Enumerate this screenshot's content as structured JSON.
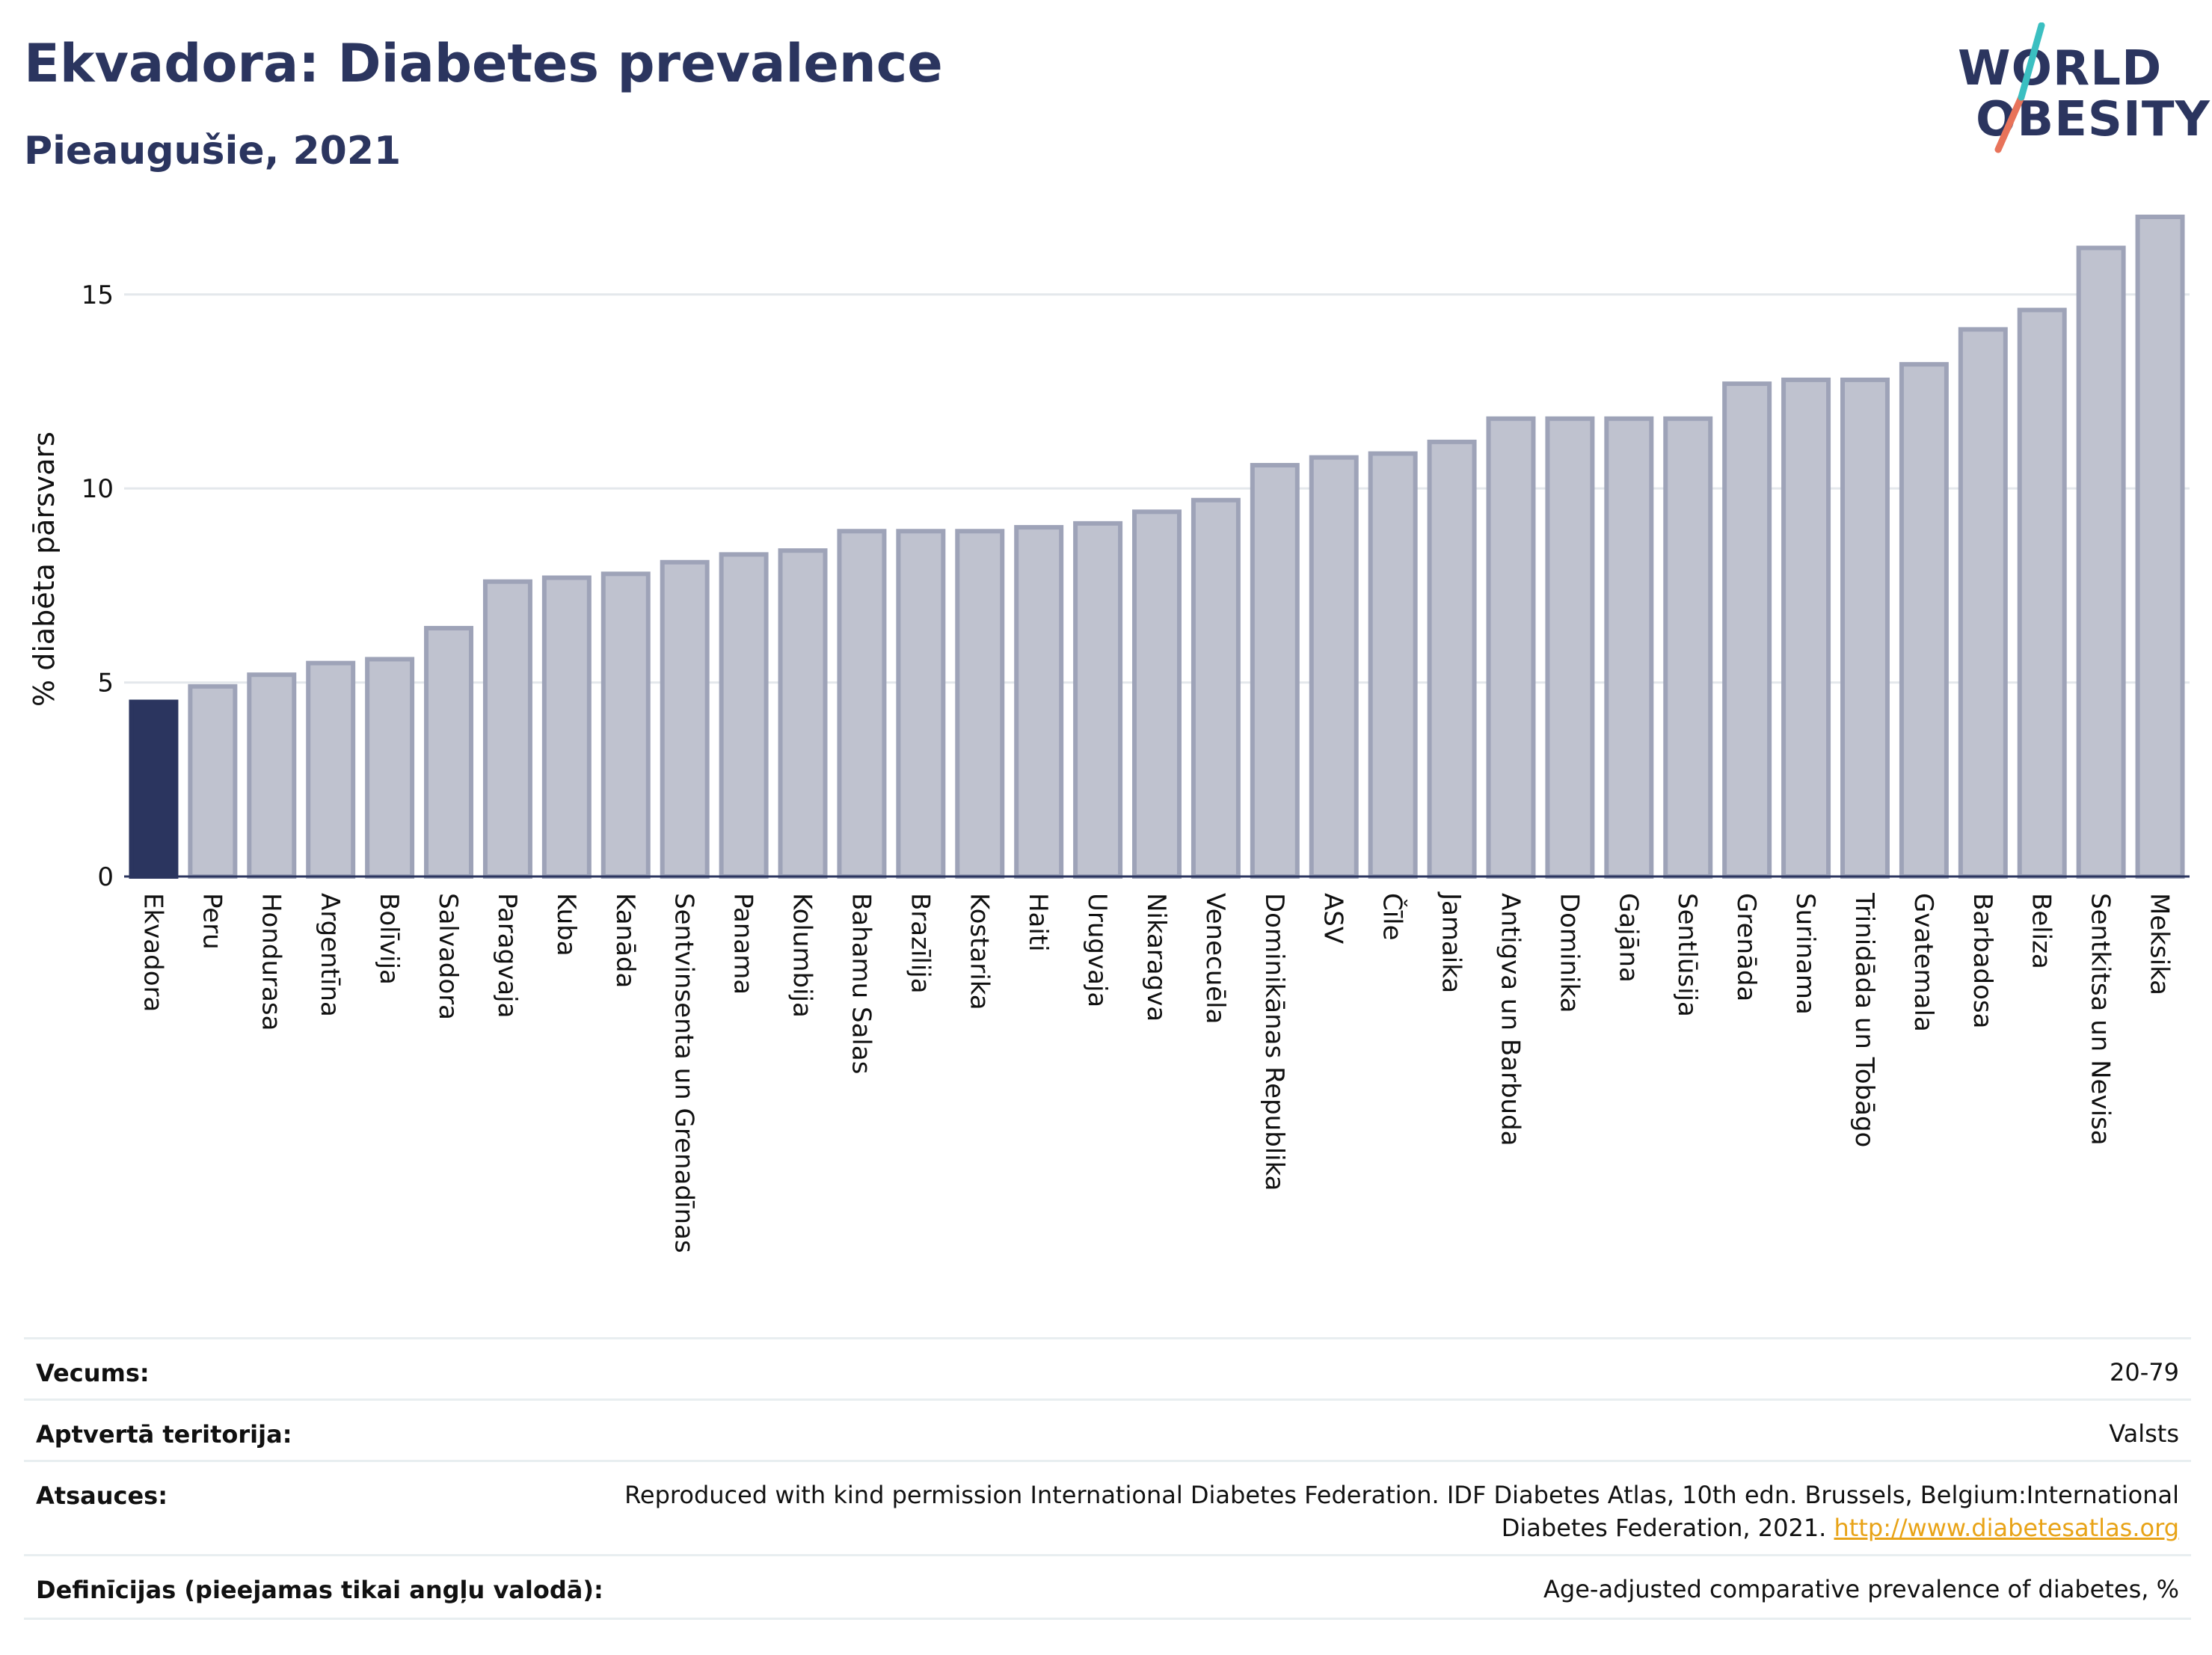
{
  "header": {
    "title": "Ekvadora: Diabetes prevalence",
    "subtitle": "Pieaugušie, 2021"
  },
  "logo": {
    "line1": "WORLD",
    "line2": "OBESITY",
    "accent_teal": "#3bbfc1",
    "accent_coral": "#e8735a"
  },
  "colors": {
    "highlight_bar": "#2b355f",
    "other_bar_fill": "#bfc2cf",
    "other_bar_stroke": "#9ea3b8",
    "text": "#2b355f",
    "link": "#e8a317"
  },
  "chart_data": {
    "type": "bar",
    "title": "Ekvadora: Diabetes prevalence",
    "subtitle": "Pieaugušie, 2021",
    "xlabel": "",
    "ylabel": "% diabēta pārsvars",
    "ylim": [
      0,
      17
    ],
    "yticks": [
      0,
      5,
      10,
      15
    ],
    "grid": true,
    "highlight": "Ekvadora",
    "categories": [
      "Ekvadora",
      "Peru",
      "Hondurasa",
      "Argentīna",
      "Bolīvija",
      "Salvadora",
      "Paragvaja",
      "Kuba",
      "Kanāda",
      "Sentvinsenta un Grenadīnas",
      "Panama",
      "Kolumbija",
      "Bahamu Salas",
      "Brazīlija",
      "Kostarika",
      "Haiti",
      "Urugvaja",
      "Nikaragva",
      "Venecuēla",
      "Dominikānas Republika",
      "ASV",
      "Čīle",
      "Jamaika",
      "Antigva un Barbuda",
      "Dominika",
      "Gajāna",
      "Sentlūsija",
      "Grenāda",
      "Surinama",
      "Trinidāda un Tobāgo",
      "Gvatemala",
      "Barbadosa",
      "Beliza",
      "Sentkitsa un Nevisa",
      "Meksika"
    ],
    "values": [
      4.5,
      4.9,
      5.2,
      5.5,
      5.6,
      6.4,
      7.6,
      7.7,
      7.8,
      8.1,
      8.3,
      8.4,
      8.9,
      8.9,
      8.9,
      9.0,
      9.1,
      9.4,
      9.7,
      10.6,
      10.8,
      10.9,
      11.2,
      11.8,
      11.8,
      11.8,
      11.8,
      12.7,
      12.8,
      12.8,
      13.2,
      14.1,
      14.6,
      16.2,
      17.0
    ]
  },
  "meta": {
    "rows": [
      {
        "label": "Vecums:",
        "value": "20-79"
      },
      {
        "label": "Aptvertā teritorija:",
        "value": "Valsts"
      },
      {
        "label": "Atsauces:",
        "value_line1": "Reproduced with kind permission International Diabetes Federation.  IDF Diabetes Atlas, 10th edn. Brussels, Belgium:International",
        "value_line2": "Diabetes Federation, 2021. ",
        "link": "http://www.diabetesatlas.org"
      },
      {
        "label": "Definīcijas (pieejamas tikai angļu valodā):",
        "value": "Age-adjusted comparative prevalence of diabetes, %"
      }
    ]
  }
}
